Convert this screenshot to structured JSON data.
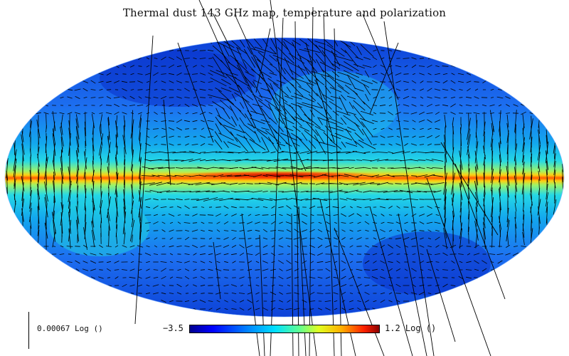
{
  "title": "Thermal dust 143 GHz map, temperature and polarization",
  "colorbar": {
    "min_label": "−3.5",
    "max_label": "1.2 Log ()",
    "min_value": -3.5,
    "max_value": 1.2,
    "scale": "log",
    "colormap": [
      "#00008f",
      "#0000ff",
      "#0080ff",
      "#00e0ff",
      "#60ff90",
      "#e0ff20",
      "#ffb000",
      "#ff2000",
      "#8b0000"
    ]
  },
  "vector_scale": {
    "label": "0.00067 Log ()"
  },
  "map": {
    "projection": "Mollweide",
    "vector_color": "#000000"
  }
}
